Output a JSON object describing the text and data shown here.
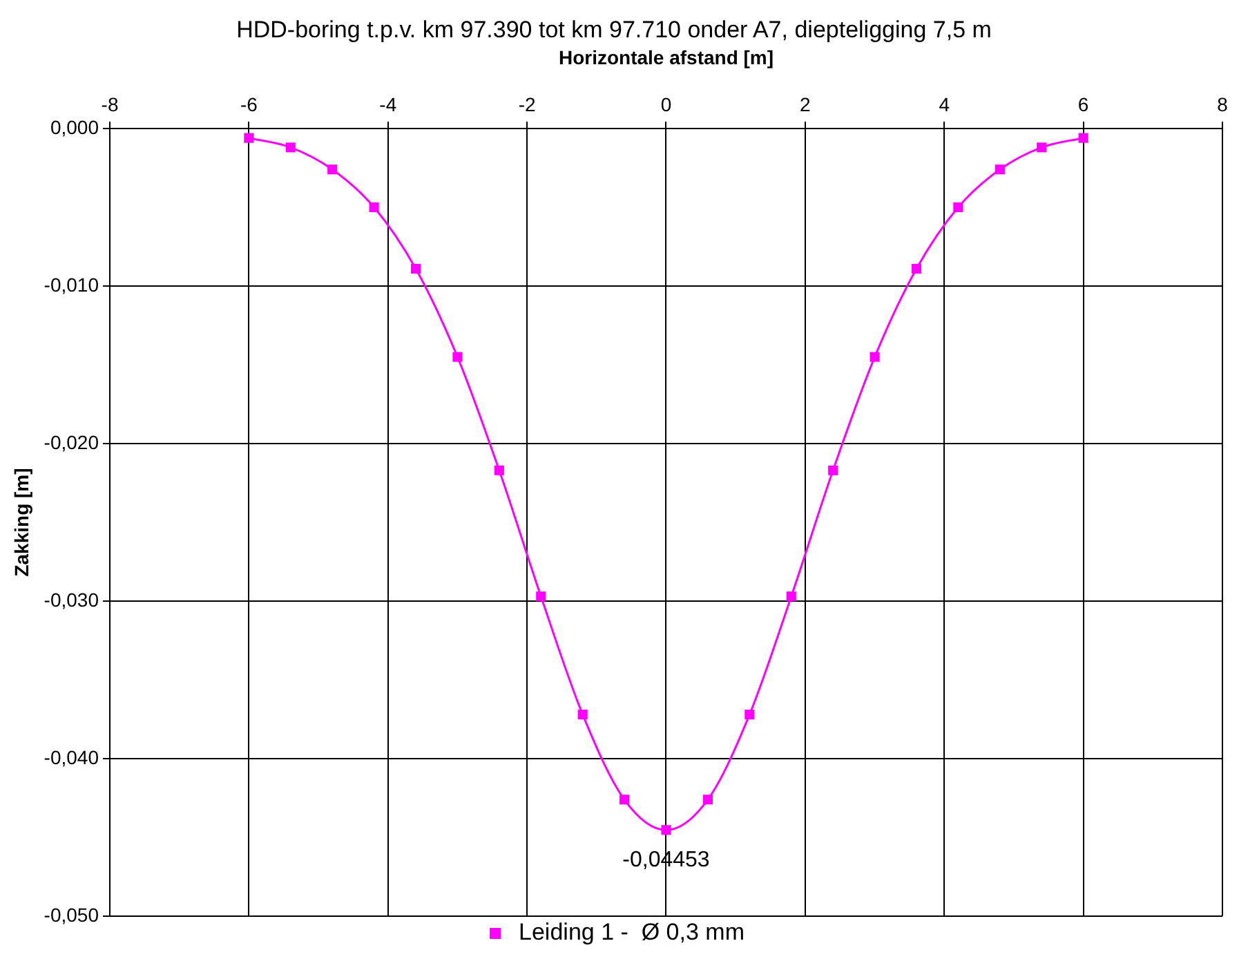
{
  "chart_data": {
    "type": "line",
    "title": "HDD-boring t.p.v. km 97.390 tot km 97.710 onder A7, diepteligging 7,5 m",
    "xlabel": "Horizontale afstand [m]",
    "ylabel": "Zakking [m]",
    "x": [
      -6,
      -5.4,
      -4.8,
      -4.2,
      -3.6,
      -3,
      -2.4,
      -1.8,
      -1.2,
      -0.6,
      0,
      0.6,
      1.2,
      1.8,
      2.4,
      3,
      3.6,
      4.2,
      4.8,
      5.4,
      6
    ],
    "series": [
      {
        "name": "Leiding 1 -  Ø 0,3 mm",
        "color": "#ff00ff",
        "values": [
          -0.0006,
          -0.0012,
          -0.0026,
          -0.005,
          -0.0089,
          -0.0145,
          -0.0217,
          -0.0297,
          -0.0372,
          -0.0426,
          -0.04453,
          -0.0426,
          -0.0372,
          -0.0297,
          -0.0217,
          -0.0145,
          -0.0089,
          -0.005,
          -0.0026,
          -0.0012,
          -0.0006
        ],
        "value_labels": [
          null,
          null,
          null,
          null,
          null,
          null,
          null,
          null,
          null,
          null,
          "-0,04453",
          null,
          null,
          null,
          null,
          null,
          null,
          null,
          null,
          null,
          null
        ]
      }
    ],
    "xlim": [
      -8,
      8
    ],
    "xticks": [
      -8,
      -6,
      -4,
      -2,
      0,
      2,
      4,
      6,
      8
    ],
    "ylim": [
      -0.05,
      0
    ],
    "yticks": [
      {
        "value": -0.05,
        "label": "-0,050"
      },
      {
        "value": -0.04,
        "label": "-0,040"
      },
      {
        "value": -0.03,
        "label": "-0,030"
      },
      {
        "value": -0.02,
        "label": "-0,020"
      },
      {
        "value": -0.01,
        "label": "-0,010"
      },
      {
        "value": 0,
        "label": "0,000"
      }
    ],
    "grid": true,
    "legend": "bottom",
    "marker": "square",
    "line_style": "solid"
  }
}
